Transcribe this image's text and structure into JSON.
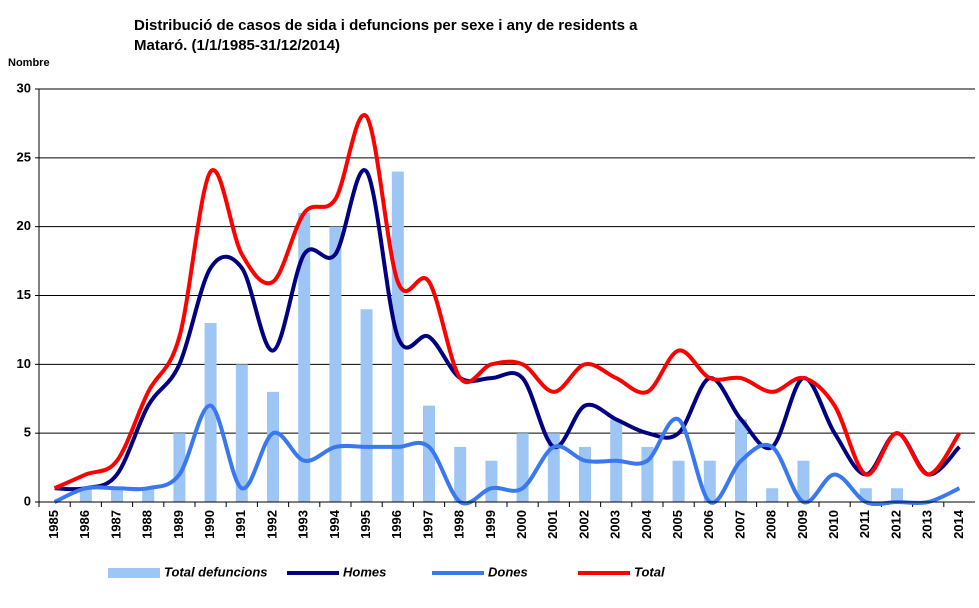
{
  "chart_data": {
    "type": "combo",
    "title": [
      "Distribució de casos de sida i defuncions per sexe i any de residents a",
      "Mataró.  (1/1/1985-31/12/2014)"
    ],
    "y_label": "Nombre",
    "categories": [
      "1985",
      "1986",
      "1987",
      "1988",
      "1989",
      "1990",
      "1991",
      "1992",
      "1993",
      "1994",
      "1995",
      "1996",
      "1997",
      "1998",
      "1999",
      "2000",
      "2001",
      "2002",
      "2003",
      "2004",
      "2005",
      "2006",
      "2007",
      "2008",
      "2009",
      "2010",
      "2011",
      "2012",
      "2013",
      "2014"
    ],
    "series": [
      {
        "name": "Total defuncions",
        "type": "bar",
        "color": "#9ec6f4",
        "values": [
          0,
          1,
          1,
          1,
          5,
          13,
          10,
          8,
          21,
          20,
          14,
          24,
          7,
          4,
          3,
          5,
          5,
          4,
          6,
          4,
          3,
          3,
          6,
          1,
          3,
          0,
          1,
          1,
          0,
          0
        ]
      },
      {
        "name": "Homes",
        "type": "line",
        "color": "#000080",
        "values": [
          1,
          1,
          2,
          7,
          10,
          17,
          17,
          11,
          18,
          18,
          24,
          12,
          12,
          9,
          9,
          9,
          4,
          7,
          6,
          5,
          5,
          9,
          6,
          4,
          9,
          5,
          2,
          5,
          2,
          4
        ]
      },
      {
        "name": "Dones",
        "type": "line",
        "color": "#3a78f0",
        "values": [
          0,
          1,
          1,
          1,
          2,
          7,
          1,
          5,
          3,
          4,
          4,
          4,
          4,
          0,
          1,
          1,
          4,
          3,
          3,
          3,
          6,
          0,
          3,
          4,
          0,
          2,
          0,
          0,
          0,
          1
        ]
      },
      {
        "name": "Total",
        "type": "line",
        "color": "#ff0000",
        "values": [
          1,
          2,
          3,
          8,
          12,
          24,
          18,
          16,
          21,
          22,
          28,
          16,
          16,
          9,
          10,
          10,
          8,
          10,
          9,
          8,
          11,
          9,
          9,
          8,
          9,
          7,
          2,
          5,
          2,
          5
        ]
      }
    ],
    "ylim": [
      0,
      30
    ],
    "yticks": [
      0,
      5,
      10,
      15,
      20,
      25,
      30
    ],
    "grid": true,
    "legend": "bottom"
  }
}
